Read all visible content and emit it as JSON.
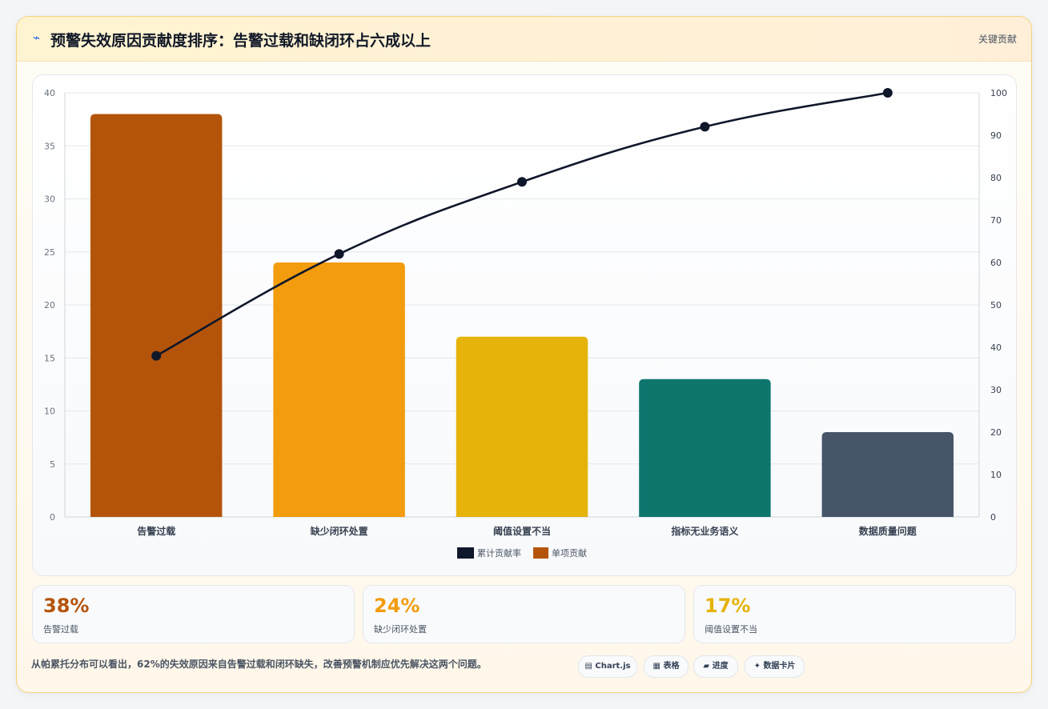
{
  "header": {
    "icon": "lightning-icon",
    "title": "预警失效原因贡献度排序：告警过载和缺闭环占六成以上",
    "tag": "关键贡献"
  },
  "colors": {
    "bar_colors": [
      "#b4540a",
      "#f29c0e",
      "#e5b30a",
      "#0f766e",
      "#475569"
    ],
    "line_color": "#0f172a"
  },
  "chart_data": {
    "type": "bar",
    "categories": [
      "告警过载",
      "缺少闭环处置",
      "阈值设置不当",
      "指标无业务语义",
      "数据质量问题"
    ],
    "series": [
      {
        "name": "单项贡献",
        "type": "bar",
        "axis": "left",
        "values": [
          38,
          24,
          17,
          13,
          8
        ]
      },
      {
        "name": "累计贡献率",
        "type": "line",
        "axis": "right",
        "values": [
          38,
          62,
          79,
          92,
          100
        ]
      }
    ],
    "ylim": [
      0,
      40
    ],
    "y_ticks": [
      0,
      5,
      10,
      15,
      20,
      25,
      30,
      35,
      40
    ],
    "y2lim": [
      0,
      100
    ],
    "y2_ticks": [
      0,
      10,
      20,
      30,
      40,
      50,
      60,
      70,
      80,
      90,
      100
    ],
    "grid": true,
    "legend_position": "bottom-center"
  },
  "stats": [
    {
      "value": "38%",
      "label": "告警过载",
      "color": "#b4540a"
    },
    {
      "value": "24%",
      "label": "缺少闭环处置",
      "color": "#f29c0e"
    },
    {
      "value": "17%",
      "label": "阈值设置不当",
      "color": "#e5b30a"
    }
  ],
  "footer": {
    "text": "从帕累托分布可以看出，62%的失效原因来自告警过载和闭环缺失，改善预警机制应优先解决这两个问题。",
    "pills": [
      {
        "icon": "chart-icon",
        "glyph": "▤",
        "label": "Chart.js"
      },
      {
        "icon": "table-icon",
        "glyph": "▦",
        "label": "表格"
      },
      {
        "icon": "progress-icon",
        "glyph": "▰",
        "label": "进度"
      },
      {
        "icon": "sparkle-icon",
        "glyph": "✦",
        "label": "数据卡片"
      }
    ]
  }
}
